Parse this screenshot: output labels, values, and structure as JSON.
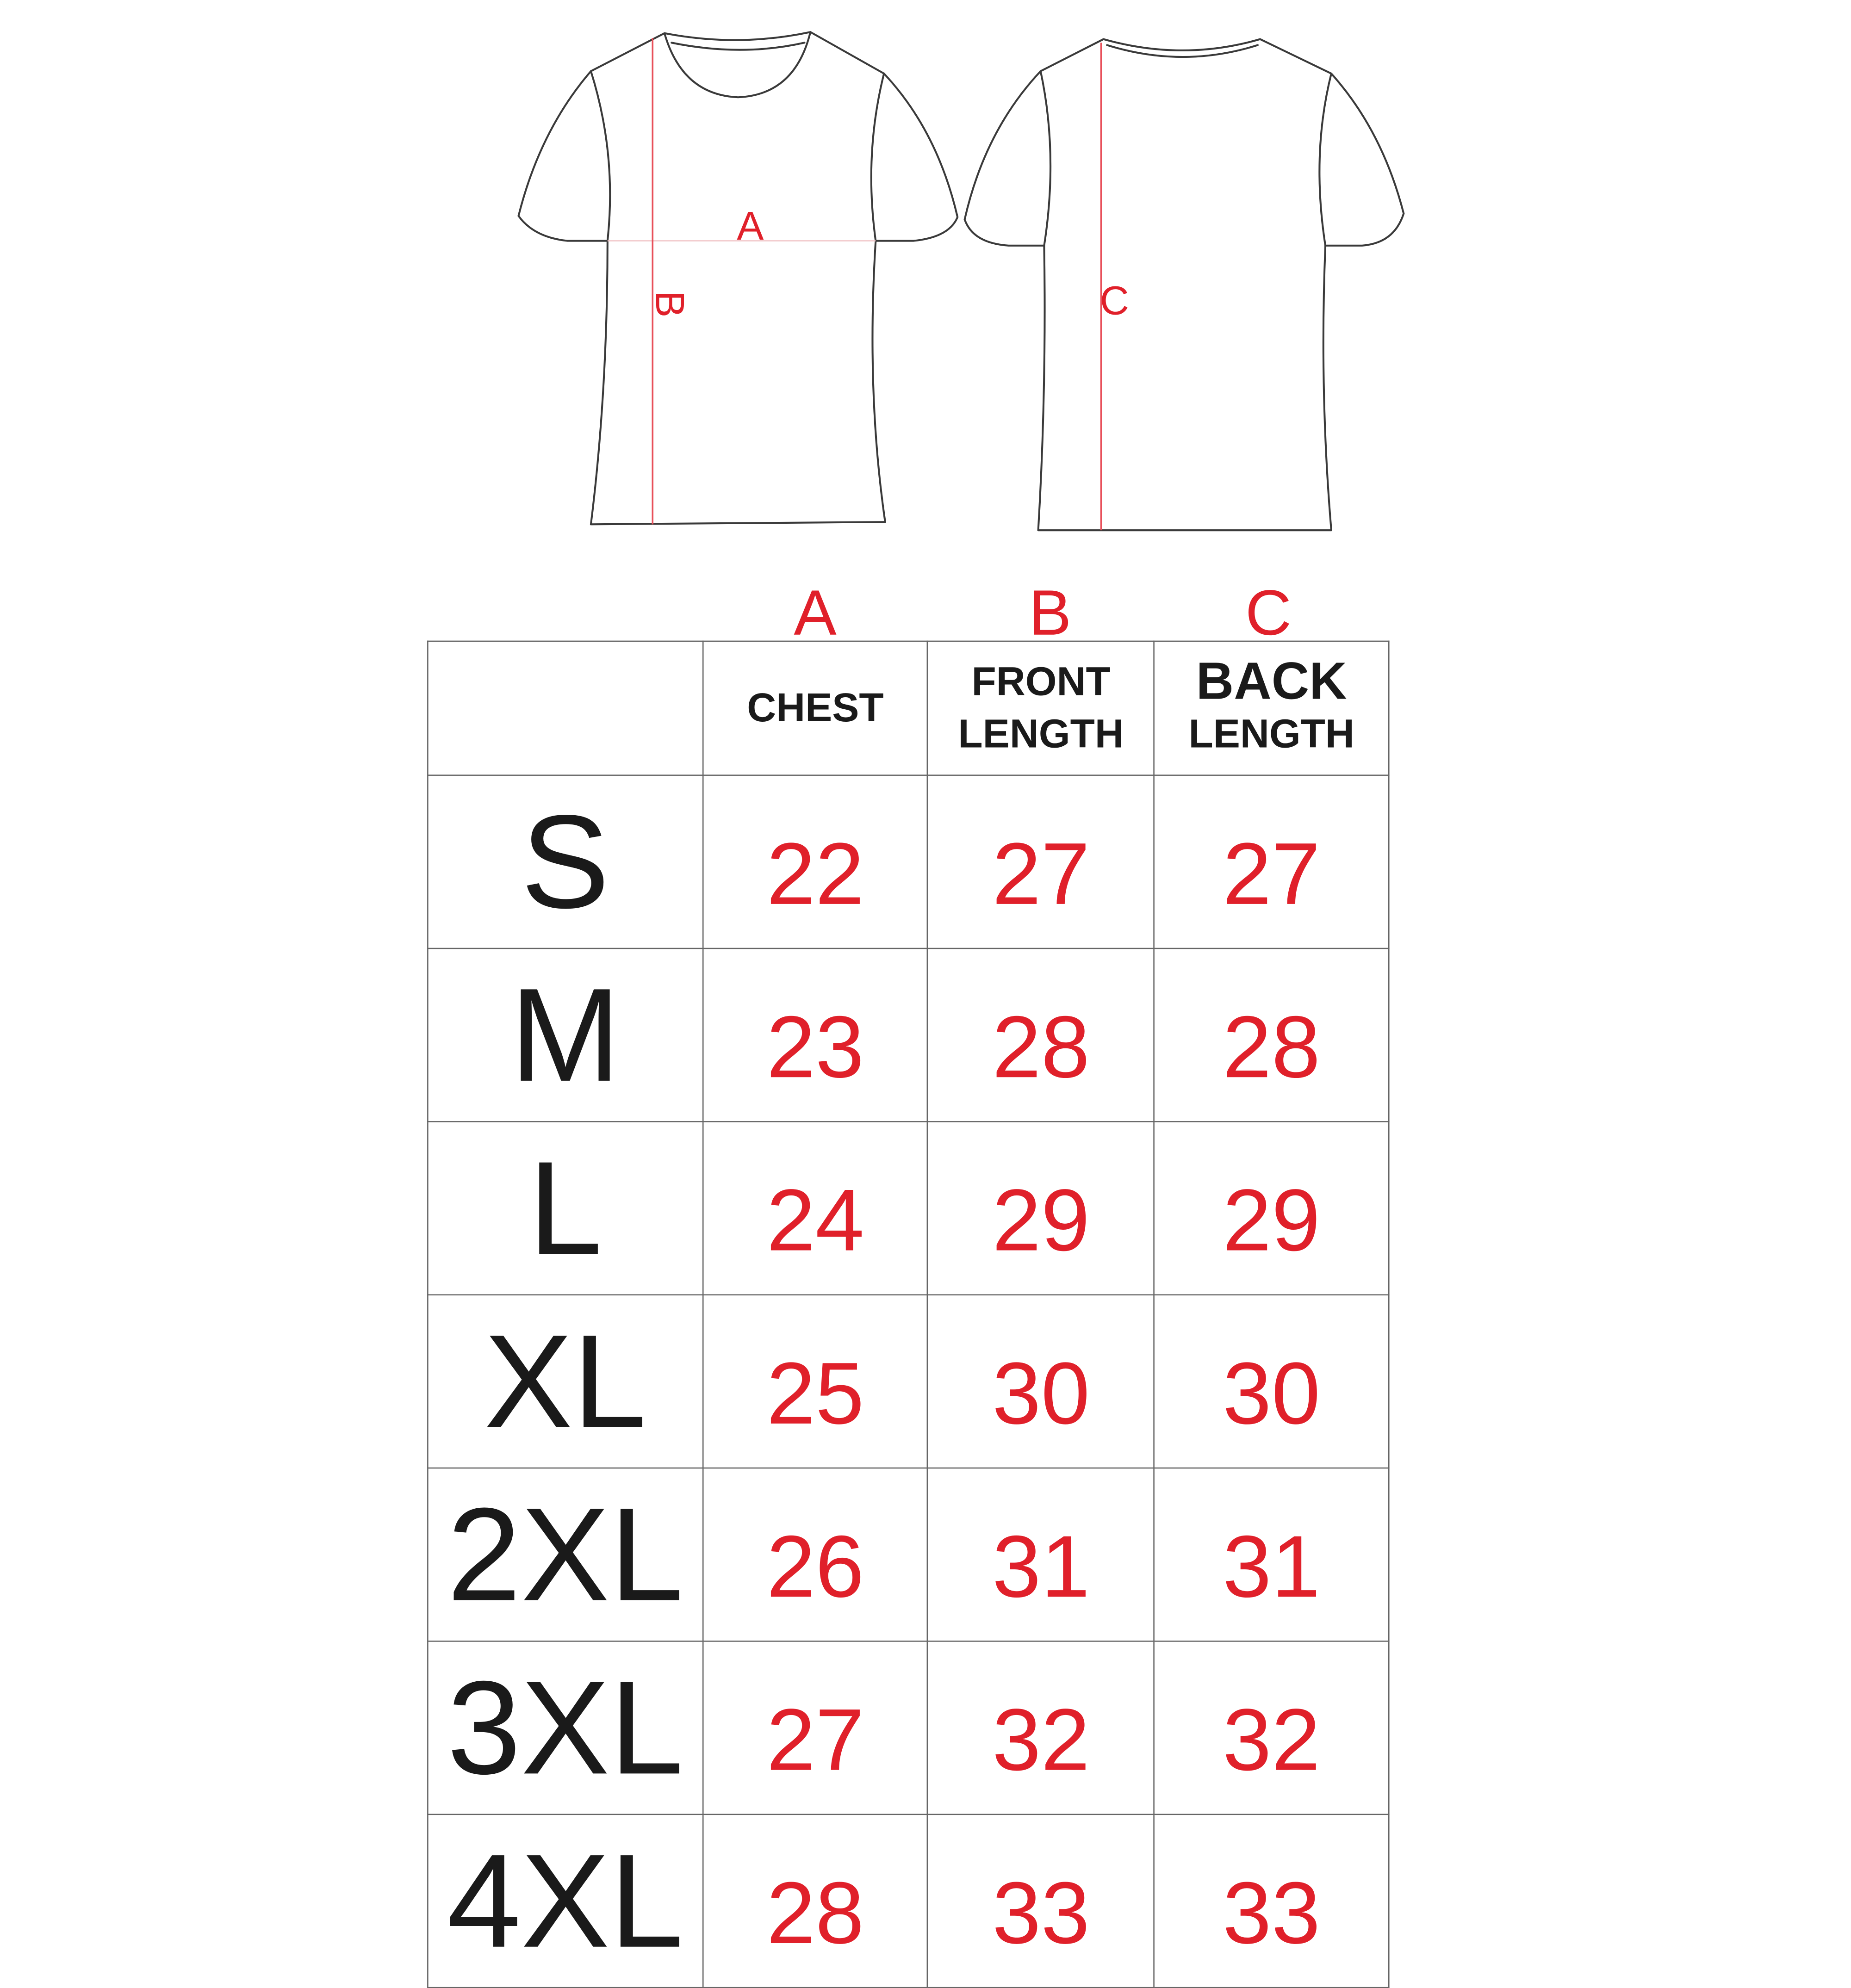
{
  "diagram": {
    "front_label_chest": "A",
    "front_label_length": "B",
    "back_label_length": "C"
  },
  "table": {
    "column_letters": [
      "A",
      "B",
      "C"
    ],
    "headers": {
      "chest": "CHEST",
      "front_line1": "FRONT",
      "front_line2": "LENGTH",
      "back_line1": "BACK",
      "back_line2": "LENGTH"
    },
    "rows": [
      {
        "size": "S",
        "chest": "22",
        "front_length": "27",
        "back_length": "27"
      },
      {
        "size": "M",
        "chest": "23",
        "front_length": "28",
        "back_length": "28"
      },
      {
        "size": "L",
        "chest": "24",
        "front_length": "29",
        "back_length": "29"
      },
      {
        "size": "XL",
        "chest": "25",
        "front_length": "30",
        "back_length": "30"
      },
      {
        "size": "2XL",
        "chest": "26",
        "front_length": "31",
        "back_length": "31"
      },
      {
        "size": "3XL",
        "chest": "27",
        "front_length": "32",
        "back_length": "32"
      },
      {
        "size": "4XL",
        "chest": "28",
        "front_length": "33",
        "back_length": "33"
      }
    ],
    "colors": {
      "value": "#e0202a",
      "size": "#1a1a1a",
      "border": "#666666"
    }
  }
}
